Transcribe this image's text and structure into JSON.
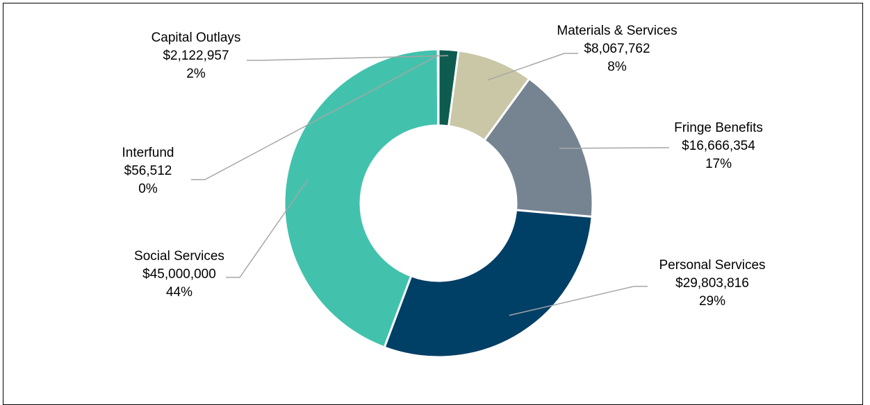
{
  "chart_data": {
    "type": "pie",
    "donut": true,
    "title": "",
    "slices": [
      {
        "label": "Capital Outlays",
        "amount": "$2,122,957",
        "value": 2122957,
        "percent": "2%",
        "color": "#0d5c4f"
      },
      {
        "label": "Materials & Services",
        "amount": "$8,067,762",
        "value": 8067762,
        "percent": "8%",
        "color": "#c9c7a6"
      },
      {
        "label": "Fringe Benefits",
        "amount": "$16,666,354",
        "value": 16666354,
        "percent": "17%",
        "color": "#768492"
      },
      {
        "label": "Personal Services",
        "amount": "$29,803,816",
        "value": 29803816,
        "percent": "29%",
        "color": "#003f66"
      },
      {
        "label": "Social Services",
        "amount": "$45,000,000",
        "value": 45000000,
        "percent": "44%",
        "color": "#42c2ad"
      },
      {
        "label": "Interfund",
        "amount": "$56,512",
        "value": 56512,
        "percent": "0%",
        "color": "#42c2ad"
      }
    ],
    "legend": "none",
    "data_labels": "outside with leader lines"
  }
}
